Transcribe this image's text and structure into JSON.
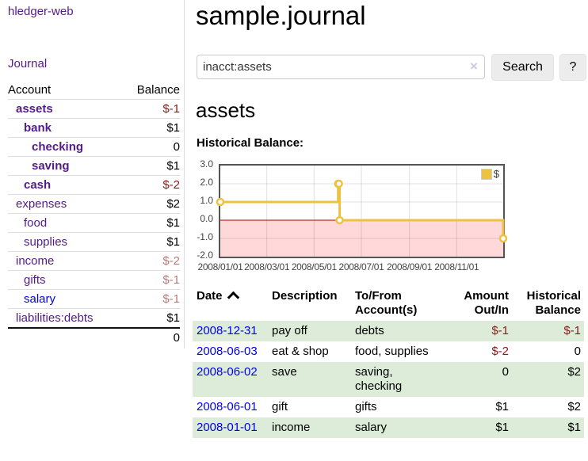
{
  "app": {
    "title": "hledger-web"
  },
  "colors": {
    "purple": "#551A8B",
    "blue": "#0000EE",
    "negative": "#8b1a1a",
    "negative_faded": "#bd7a7a",
    "row_stripe": "#dcecd8",
    "button_bg": "#ececec",
    "border_light": "#dddddd"
  },
  "sidebar": {
    "journal_label": "Journal",
    "accounts_table": {
      "account_header": "Account",
      "balance_header": "Balance",
      "rows": [
        {
          "account": "assets",
          "balance": "$-1",
          "depth": 1,
          "in_filter": true,
          "balance_tone": "negative-strong",
          "link_tone": "purple"
        },
        {
          "account": "bank",
          "balance": "$1",
          "depth": 2,
          "in_filter": true,
          "balance_tone": "normal",
          "link_tone": "purple"
        },
        {
          "account": "checking",
          "balance": "0",
          "depth": 3,
          "in_filter": true,
          "balance_tone": "normal",
          "link_tone": "purple"
        },
        {
          "account": "saving",
          "balance": "$1",
          "depth": 3,
          "in_filter": true,
          "balance_tone": "normal",
          "link_tone": "purple"
        },
        {
          "account": "cash",
          "balance": "$-2",
          "depth": 2,
          "in_filter": true,
          "balance_tone": "negative-strong",
          "link_tone": "purple"
        },
        {
          "account": "expenses",
          "balance": "$2",
          "depth": 1,
          "in_filter": false,
          "balance_tone": "normal",
          "link_tone": "purple"
        },
        {
          "account": "food",
          "balance": "$1",
          "depth": 2,
          "in_filter": false,
          "balance_tone": "normal",
          "link_tone": "purple"
        },
        {
          "account": "supplies",
          "balance": "$1",
          "depth": 2,
          "in_filter": false,
          "balance_tone": "normal",
          "link_tone": "purple"
        },
        {
          "account": "income",
          "balance": "$-2",
          "depth": 1,
          "in_filter": false,
          "balance_tone": "negative-faded",
          "link_tone": "purple"
        },
        {
          "account": "gifts",
          "balance": "$-1",
          "depth": 2,
          "in_filter": false,
          "balance_tone": "negative-faded",
          "link_tone": "purple"
        },
        {
          "account": "salary",
          "balance": "$-1",
          "depth": 2,
          "in_filter": false,
          "balance_tone": "negative-faded",
          "link_tone": "blue"
        },
        {
          "account": "liabilities:debts",
          "balance": "$1",
          "depth": 1,
          "in_filter": false,
          "balance_tone": "normal",
          "link_tone": "purple"
        }
      ],
      "total": "0"
    }
  },
  "main": {
    "title": "sample.journal",
    "search": {
      "value": "inacct:assets",
      "clear_icon": "×",
      "search_button": "Search",
      "help_button": "?"
    },
    "account_heading": "assets",
    "chart_label": "Historical Balance:",
    "register": {
      "headers": {
        "date": "Date",
        "description": "Description",
        "accounts": "To/From Account(s)",
        "amount": "Amount Out/In",
        "balance": "Historical Balance"
      },
      "rows": [
        {
          "date": "2008-12-31",
          "description": "pay off",
          "accounts": "debts",
          "amount": "$-1",
          "amount_negative": true,
          "balance": "$-1",
          "balance_negative": true
        },
        {
          "date": "2008-06-03",
          "description": "eat & shop",
          "accounts": "food, supplies",
          "amount": "$-2",
          "amount_negative": true,
          "balance": "0",
          "balance_negative": false
        },
        {
          "date": "2008-06-02",
          "description": "save",
          "accounts": "saving, checking",
          "amount": "0",
          "amount_negative": false,
          "balance": "$2",
          "balance_negative": false
        },
        {
          "date": "2008-06-01",
          "description": "gift",
          "accounts": "gifts",
          "amount": "$1",
          "amount_negative": false,
          "balance": "$2",
          "balance_negative": false
        },
        {
          "date": "2008-01-01",
          "description": "income",
          "accounts": "salary",
          "amount": "$1",
          "amount_negative": false,
          "balance": "$1",
          "balance_negative": false
        }
      ]
    }
  },
  "chart_data": {
    "type": "line",
    "title": "Historical Balance:",
    "legend": [
      {
        "label": "$",
        "color": "#EDC240"
      }
    ],
    "legend_position": "top-right",
    "grid": true,
    "x_min": "2008-01-01",
    "x_max": "2008-12-31",
    "ylim": [
      -2,
      3
    ],
    "yticks": [
      "3.0",
      "2.0",
      "1.0",
      "0.0",
      "-1.0",
      "-2.0"
    ],
    "ytick_values": [
      3,
      2,
      1,
      0,
      -1,
      -2
    ],
    "xticks": [
      "2008/01/01",
      "2008/03/01",
      "2008/05/01",
      "2008/07/01",
      "2008/09/01",
      "2008/11/01"
    ],
    "xtick_dates": [
      "2008-01-01",
      "2008-03-01",
      "2008-05-01",
      "2008-07-01",
      "2008-09-01",
      "2008-11-01"
    ],
    "series": [
      {
        "name": "$",
        "color": "#EDC240",
        "step": true,
        "points": [
          [
            "2008-01-01",
            1
          ],
          [
            "2008-06-01",
            2
          ],
          [
            "2008-06-02",
            2
          ],
          [
            "2008-06-03",
            0
          ],
          [
            "2008-12-31",
            -1
          ]
        ]
      }
    ],
    "negative_region_fill": "#ffd9d9",
    "zero_line_color": "#aa0000"
  }
}
